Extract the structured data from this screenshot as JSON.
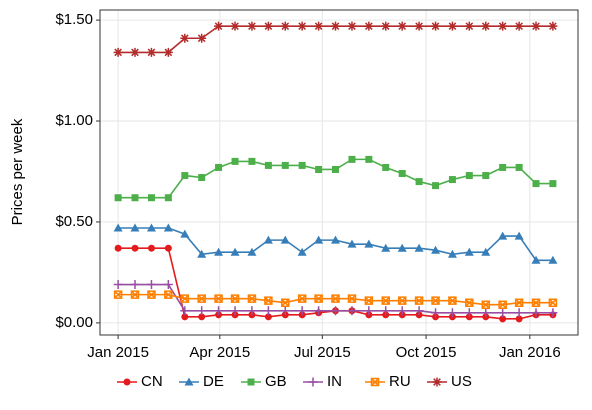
{
  "chart_data": {
    "type": "line",
    "y_label": "Prices per week",
    "x": [
      2015.0,
      2015.041,
      2015.081,
      2015.122,
      2015.162,
      2015.203,
      2015.244,
      2015.284,
      2015.325,
      2015.365,
      2015.406,
      2015.447,
      2015.487,
      2015.528,
      2015.568,
      2015.609,
      2015.65,
      2015.69,
      2015.731,
      2015.771,
      2015.812,
      2015.853,
      2015.893,
      2015.934,
      2015.974,
      2016.015,
      2016.056
    ],
    "series": [
      {
        "name": "CN",
        "color": "#e41a1c",
        "values": [
          0.37,
          0.37,
          0.37,
          0.37,
          0.03,
          0.03,
          0.04,
          0.04,
          0.04,
          0.03,
          0.04,
          0.04,
          0.05,
          0.06,
          0.06,
          0.04,
          0.04,
          0.04,
          0.04,
          0.03,
          0.03,
          0.03,
          0.03,
          0.02,
          0.02,
          0.04,
          0.04
        ]
      },
      {
        "name": "DE",
        "color": "#377eb8",
        "values": [
          0.47,
          0.47,
          0.47,
          0.47,
          0.44,
          0.34,
          0.35,
          0.35,
          0.35,
          0.41,
          0.41,
          0.35,
          0.41,
          0.41,
          0.39,
          0.39,
          0.37,
          0.37,
          0.37,
          0.36,
          0.34,
          0.35,
          0.35,
          0.43,
          0.43,
          0.31,
          0.31
        ]
      },
      {
        "name": "GB",
        "color": "#4daf4a",
        "values": [
          0.62,
          0.62,
          0.62,
          0.62,
          0.73,
          0.72,
          0.77,
          0.8,
          0.8,
          0.78,
          0.78,
          0.78,
          0.76,
          0.76,
          0.81,
          0.81,
          0.77,
          0.74,
          0.7,
          0.68,
          0.71,
          0.73,
          0.73,
          0.77,
          0.77,
          0.69,
          0.69
        ]
      },
      {
        "name": "IN",
        "color": "#984ea3",
        "values": [
          0.19,
          0.19,
          0.19,
          0.19,
          0.06,
          0.06,
          0.06,
          0.06,
          0.06,
          0.06,
          0.06,
          0.06,
          0.06,
          0.06,
          0.06,
          0.06,
          0.06,
          0.06,
          0.06,
          0.05,
          0.05,
          0.05,
          0.05,
          0.05,
          0.05,
          0.05,
          0.05
        ]
      },
      {
        "name": "RU",
        "color": "#ff7f00",
        "values": [
          0.14,
          0.14,
          0.14,
          0.14,
          0.12,
          0.12,
          0.12,
          0.12,
          0.12,
          0.11,
          0.1,
          0.12,
          0.12,
          0.12,
          0.12,
          0.11,
          0.11,
          0.11,
          0.11,
          0.11,
          0.11,
          0.1,
          0.09,
          0.09,
          0.1,
          0.1,
          0.1
        ]
      },
      {
        "name": "US",
        "color": "#b22c2c",
        "values": [
          1.34,
          1.34,
          1.34,
          1.34,
          1.41,
          1.41,
          1.47,
          1.47,
          1.47,
          1.47,
          1.47,
          1.47,
          1.47,
          1.47,
          1.47,
          1.47,
          1.47,
          1.47,
          1.47,
          1.47,
          1.47,
          1.47,
          1.47,
          1.47,
          1.47,
          1.47,
          1.47
        ]
      }
    ],
    "xlim": [
      2014.956,
      2016.117
    ],
    "xticks": [
      {
        "value": 2015.0,
        "label": "Jan 2015"
      },
      {
        "value": 2015.247,
        "label": "Apr 2015"
      },
      {
        "value": 2015.496,
        "label": "Jul 2015"
      },
      {
        "value": 2015.748,
        "label": "Oct 2015"
      },
      {
        "value": 2016.0,
        "label": "Jan 2016"
      }
    ],
    "ylim": [
      -0.06,
      1.55
    ],
    "yticks": [
      {
        "value": 0,
        "label": "$0.00"
      },
      {
        "value": 0.5,
        "label": "$0.50"
      },
      {
        "value": 1.0,
        "label": "$1.00"
      },
      {
        "value": 1.5,
        "label": "$1.50"
      }
    ],
    "grid": true,
    "legend": "bottom"
  }
}
